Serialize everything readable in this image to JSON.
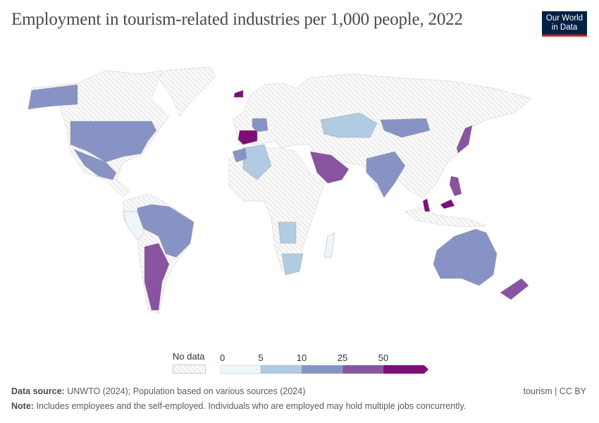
{
  "header": {
    "title": "Employment in tourism-related industries per 1,000 people, 2022",
    "logo_text": "Our World in Data"
  },
  "legend": {
    "no_data_label": "No data",
    "ticks": [
      "0",
      "5",
      "10",
      "25",
      "50"
    ],
    "bins": [
      {
        "range": "0–5",
        "color": "#eef6f9"
      },
      {
        "range": "5–10",
        "color": "#b0cbe2"
      },
      {
        "range": "10–25",
        "color": "#8793c4"
      },
      {
        "range": "25–50",
        "color": "#8953a1"
      },
      {
        "range": ">50",
        "color": "#7e0f77"
      }
    ],
    "no_data_color": "#dcdcdc"
  },
  "chart_data": {
    "type": "map",
    "title": "Employment in tourism-related industries per 1,000 people, 2022",
    "countries": [
      {
        "name": "United States",
        "bin": "10–25"
      },
      {
        "name": "Mexico",
        "bin": "10–25"
      },
      {
        "name": "Brazil",
        "bin": "10–25"
      },
      {
        "name": "Argentina",
        "bin": "25–50"
      },
      {
        "name": "Peru",
        "bin": "0–5"
      },
      {
        "name": "Spain",
        "bin": ">50"
      },
      {
        "name": "Iceland",
        "bin": ">50"
      },
      {
        "name": "France",
        "bin": "10–25"
      },
      {
        "name": "Algeria",
        "bin": "5–10"
      },
      {
        "name": "Morocco",
        "bin": "10–25"
      },
      {
        "name": "Saudi Arabia",
        "bin": "25–50"
      },
      {
        "name": "India",
        "bin": "10–25"
      },
      {
        "name": "Kazakhstan",
        "bin": "5–10"
      },
      {
        "name": "Mongolia",
        "bin": "10–25"
      },
      {
        "name": "Japan",
        "bin": "25–50"
      },
      {
        "name": "Australia",
        "bin": "10–25"
      },
      {
        "name": "New Zealand",
        "bin": "25–50"
      },
      {
        "name": "South Africa",
        "bin": "5–10"
      },
      {
        "name": "Angola",
        "bin": "5–10"
      },
      {
        "name": "Madagascar",
        "bin": "0–5"
      },
      {
        "name": "Malaysia",
        "bin": ">50"
      },
      {
        "name": "Philippines",
        "bin": "25–50"
      }
    ]
  },
  "footer": {
    "source_label": "Data source:",
    "source_text": "UNWTO (2024); Population based on various sources (2024)",
    "note_label": "Note:",
    "note_text": "Includes employees and the self-employed. Individuals who are employed may hold multiple jobs concurrently.",
    "license": "tourism | CC BY"
  }
}
